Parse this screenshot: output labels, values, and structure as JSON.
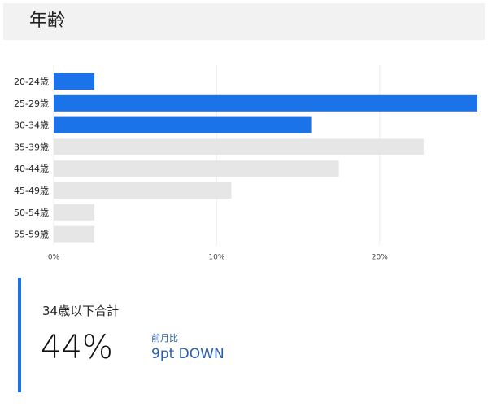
{
  "header": {
    "title": "年齢"
  },
  "chart_data": {
    "type": "bar",
    "orientation": "horizontal",
    "categories": [
      "20-24歳",
      "25-29歳",
      "30-34歳",
      "35-39歳",
      "40-44歳",
      "45-49歳",
      "50-54歳",
      "55-59歳"
    ],
    "values": [
      2.5,
      26.0,
      15.8,
      22.7,
      17.5,
      10.9,
      2.5,
      2.5
    ],
    "highlighted": [
      true,
      true,
      true,
      false,
      false,
      false,
      false,
      false
    ],
    "xlim": [
      0,
      26
    ],
    "xticks": [
      0,
      10,
      20
    ],
    "xtick_labels": [
      "0%",
      "10%",
      "20%"
    ],
    "title": "",
    "xlabel": "",
    "ylabel": "",
    "grid": true,
    "colors": {
      "highlight": "#1a73e8",
      "base": "#e6e6e6",
      "grid": "#eeeeee"
    }
  },
  "summary": {
    "label": "34歳以下合計",
    "value": "44%",
    "comparison_label": "前月比",
    "comparison_value": "9pt DOWN",
    "accent_color": "#1a73e8"
  }
}
